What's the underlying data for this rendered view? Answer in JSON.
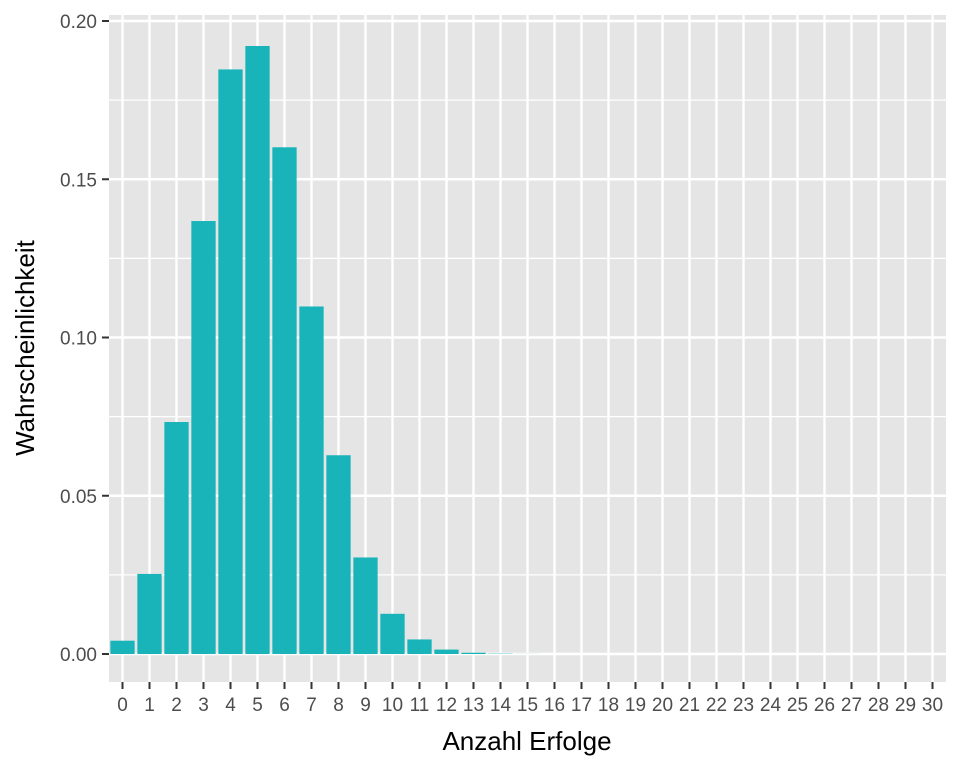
{
  "chart_data": {
    "type": "bar",
    "title": "",
    "xlabel": "Anzahl Erfolge",
    "ylabel": "Wahrscheinlichkeit",
    "categories": [
      "0",
      "1",
      "2",
      "3",
      "4",
      "5",
      "6",
      "7",
      "8",
      "9",
      "10",
      "11",
      "12",
      "13",
      "14",
      "15",
      "16",
      "17",
      "18",
      "19",
      "20",
      "21",
      "22",
      "23",
      "24",
      "25",
      "26",
      "27",
      "28",
      "29",
      "30"
    ],
    "values": [
      0.0042,
      0.0253,
      0.0733,
      0.1368,
      0.1847,
      0.1921,
      0.1601,
      0.1098,
      0.0628,
      0.0305,
      0.0127,
      0.0046,
      0.0014,
      0.0004,
      0.0001,
      2e-05,
      0,
      0,
      0,
      0,
      0,
      0,
      0,
      0,
      0,
      0,
      0,
      0,
      0,
      0,
      0
    ],
    "ylim": [
      -0.01,
      0.2
    ],
    "y_ticks": [
      {
        "value": 0.0,
        "label": "0.00"
      },
      {
        "value": 0.05,
        "label": "0.05"
      },
      {
        "value": 0.1,
        "label": "0.10"
      },
      {
        "value": 0.15,
        "label": "0.15"
      },
      {
        "value": 0.2,
        "label": "0.20"
      }
    ],
    "grid": true,
    "bar_color": "#19B4BA",
    "panel_color": "#E5E5E5",
    "grid_color": "#FFFFFF"
  }
}
